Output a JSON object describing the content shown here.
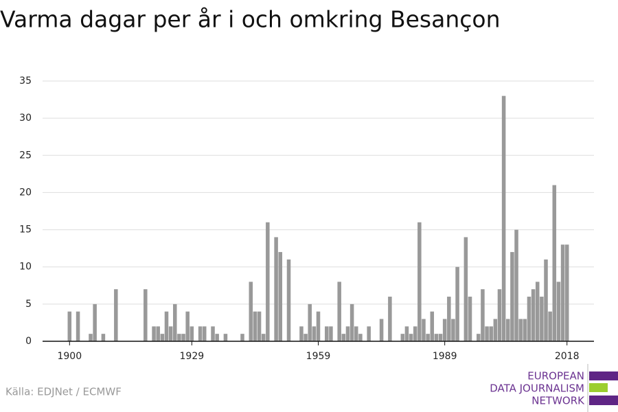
{
  "chart_data": {
    "type": "bar",
    "title": "Varma dagar per år i och omkring Besançon",
    "source": "Källa: EDJNet / ECMWF",
    "logo": [
      "EUROPEAN",
      "DATA JOURNALISM",
      "NETWORK"
    ],
    "color": "#999999",
    "grid": true,
    "x": [
      1900,
      1901,
      1902,
      1903,
      1904,
      1905,
      1906,
      1907,
      1908,
      1909,
      1910,
      1911,
      1912,
      1913,
      1914,
      1915,
      1916,
      1917,
      1918,
      1919,
      1920,
      1921,
      1922,
      1923,
      1924,
      1925,
      1926,
      1927,
      1928,
      1929,
      1930,
      1931,
      1932,
      1933,
      1934,
      1935,
      1936,
      1937,
      1938,
      1939,
      1940,
      1941,
      1942,
      1943,
      1944,
      1945,
      1946,
      1947,
      1948,
      1949,
      1950,
      1951,
      1952,
      1953,
      1954,
      1955,
      1956,
      1957,
      1958,
      1959,
      1960,
      1961,
      1962,
      1963,
      1964,
      1965,
      1966,
      1967,
      1968,
      1969,
      1970,
      1971,
      1972,
      1973,
      1974,
      1975,
      1976,
      1977,
      1978,
      1979,
      1980,
      1981,
      1982,
      1983,
      1984,
      1985,
      1986,
      1987,
      1988,
      1989,
      1990,
      1991,
      1992,
      1993,
      1994,
      1995,
      1996,
      1997,
      1998,
      1999,
      2000,
      2001,
      2002,
      2003,
      2004,
      2005,
      2006,
      2007,
      2008,
      2009,
      2010,
      2011,
      2012,
      2013,
      2014,
      2015,
      2016,
      2017,
      2018
    ],
    "values": [
      4,
      0,
      4,
      0,
      0,
      1,
      5,
      0,
      1,
      0,
      0,
      7,
      0,
      0,
      0,
      0,
      0,
      0,
      7,
      0,
      2,
      2,
      1,
      4,
      2,
      5,
      1,
      1,
      4,
      2,
      0,
      2,
      2,
      0,
      2,
      1,
      0,
      1,
      0,
      0,
      0,
      1,
      0,
      8,
      4,
      4,
      1,
      16,
      0,
      14,
      12,
      0,
      11,
      0,
      0,
      2,
      1,
      5,
      2,
      4,
      0,
      2,
      2,
      0,
      8,
      1,
      2,
      5,
      2,
      1,
      0,
      2,
      0,
      0,
      3,
      0,
      6,
      0,
      0,
      1,
      2,
      1,
      2,
      16,
      3,
      1,
      4,
      1,
      1,
      3,
      6,
      3,
      10,
      0,
      14,
      6,
      0,
      1,
      7,
      2,
      2,
      3,
      7,
      33,
      3,
      12,
      15,
      3,
      3,
      6,
      7,
      8,
      6,
      11,
      4,
      21,
      8,
      13,
      13
    ],
    "xlim": [
      1893.6,
      2024.4
    ],
    "xticks": [
      1900,
      1929,
      1959,
      1989,
      2018
    ],
    "ylim": [
      0,
      35
    ],
    "yticks": [
      0,
      5,
      10,
      15,
      20,
      25,
      30,
      35
    ]
  }
}
